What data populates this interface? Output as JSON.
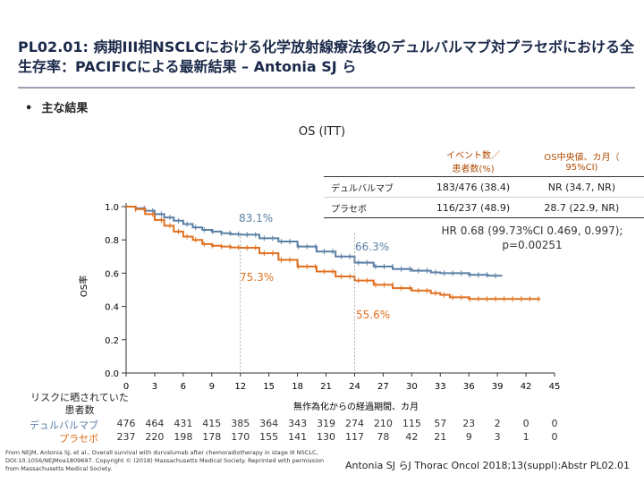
{
  "title": "PL02.01: 病期III相NSCLCにおける化学放射線療法後のデュルバルマブ対プラセボにおける全生存率：PACIFICによる最新結果 – Antonia SJ ら",
  "bullet": "主な結果",
  "os_title": "OS (ITT)",
  "table": {
    "headers": [
      "",
      "イベント数／\n患者数(%)",
      "OS中央値、カ月（\n95%CI)"
    ],
    "rows": [
      [
        "デュルバルマブ",
        "183/476 (38.4)",
        "NR (34.7, NR)"
      ],
      [
        "プラセボ",
        "116/237 (48.9)",
        "28.7 (22.9, NR)"
      ]
    ]
  },
  "hr_text": "HR 0.68 (99.73%CI 0.469, 0.997);\np=0.00251",
  "annotations": [
    "83.1%",
    "66.3%",
    "75.3%",
    "55.6%"
  ],
  "risk_table": {
    "title": "リスクに晒されていた\n患者数",
    "rows": [
      {
        "label": "デュルバルマブ",
        "values": [
          "476",
          "464",
          "431",
          "415",
          "385",
          "364",
          "343",
          "319",
          "274",
          "210",
          "115",
          "57",
          "23",
          "2",
          "0",
          "0"
        ]
      },
      {
        "label": "プラセボ",
        "values": [
          "237",
          "220",
          "198",
          "178",
          "170",
          "155",
          "141",
          "130",
          "117",
          "78",
          "42",
          "21",
          "9",
          "3",
          "1",
          "0"
        ]
      }
    ]
  },
  "footer_left": "From NEJM, Antonia SJ, et al., Overall survival with durvalumab after chemoradiotherapy in stage III NSCLC, DOI:10.1056/NEJMoa1809697. Copyright © (2018) Massachusetts Medical Society. Reprinted with permission from Massachusetts Medical Society.",
  "footer_right": "Antonia SJ らJ Thorac Oncol 2018;13(suppl):Abstr PL02.01",
  "colors": {
    "durvalumab": "#5b7fa6",
    "placebo": "#e07020",
    "title": "#1b2a4a"
  },
  "chart_data": {
    "type": "line",
    "title": "OS (ITT)",
    "xlabel": "無作為化からの経過期間、カ月",
    "ylabel": "OS率",
    "xlim": [
      0,
      45
    ],
    "ylim": [
      0.0,
      1.0
    ],
    "xticks": [
      0,
      3,
      6,
      9,
      12,
      15,
      18,
      21,
      24,
      27,
      30,
      33,
      36,
      39,
      42,
      45
    ],
    "yticks": [
      "0.0",
      "0.2",
      "0.4",
      "0.6",
      "0.8",
      "1.0"
    ],
    "series": [
      {
        "name": "デュルバルマブ",
        "x": [
          0,
          1,
          2,
          3,
          4,
          5,
          6,
          7,
          8,
          9,
          10,
          11,
          12,
          14,
          16,
          18,
          20,
          22,
          24,
          26,
          28,
          30,
          32,
          33,
          36,
          38,
          39.5
        ],
        "y": [
          1.0,
          0.99,
          0.975,
          0.955,
          0.935,
          0.915,
          0.895,
          0.875,
          0.86,
          0.85,
          0.84,
          0.835,
          0.831,
          0.81,
          0.79,
          0.76,
          0.73,
          0.7,
          0.663,
          0.64,
          0.625,
          0.615,
          0.605,
          0.6,
          0.59,
          0.585,
          0.585
        ]
      },
      {
        "name": "プラセボ",
        "x": [
          0,
          1,
          2,
          3,
          4,
          5,
          6,
          7,
          8,
          9,
          10,
          11,
          12,
          14,
          16,
          18,
          20,
          22,
          24,
          26,
          28,
          30,
          32,
          33,
          34,
          36,
          38,
          40,
          42,
          43.5
        ],
        "y": [
          1.0,
          0.985,
          0.955,
          0.92,
          0.885,
          0.85,
          0.82,
          0.8,
          0.775,
          0.765,
          0.76,
          0.755,
          0.753,
          0.72,
          0.68,
          0.64,
          0.61,
          0.58,
          0.556,
          0.53,
          0.51,
          0.495,
          0.48,
          0.47,
          0.455,
          0.445,
          0.445,
          0.445,
          0.445,
          0.445
        ]
      }
    ]
  }
}
